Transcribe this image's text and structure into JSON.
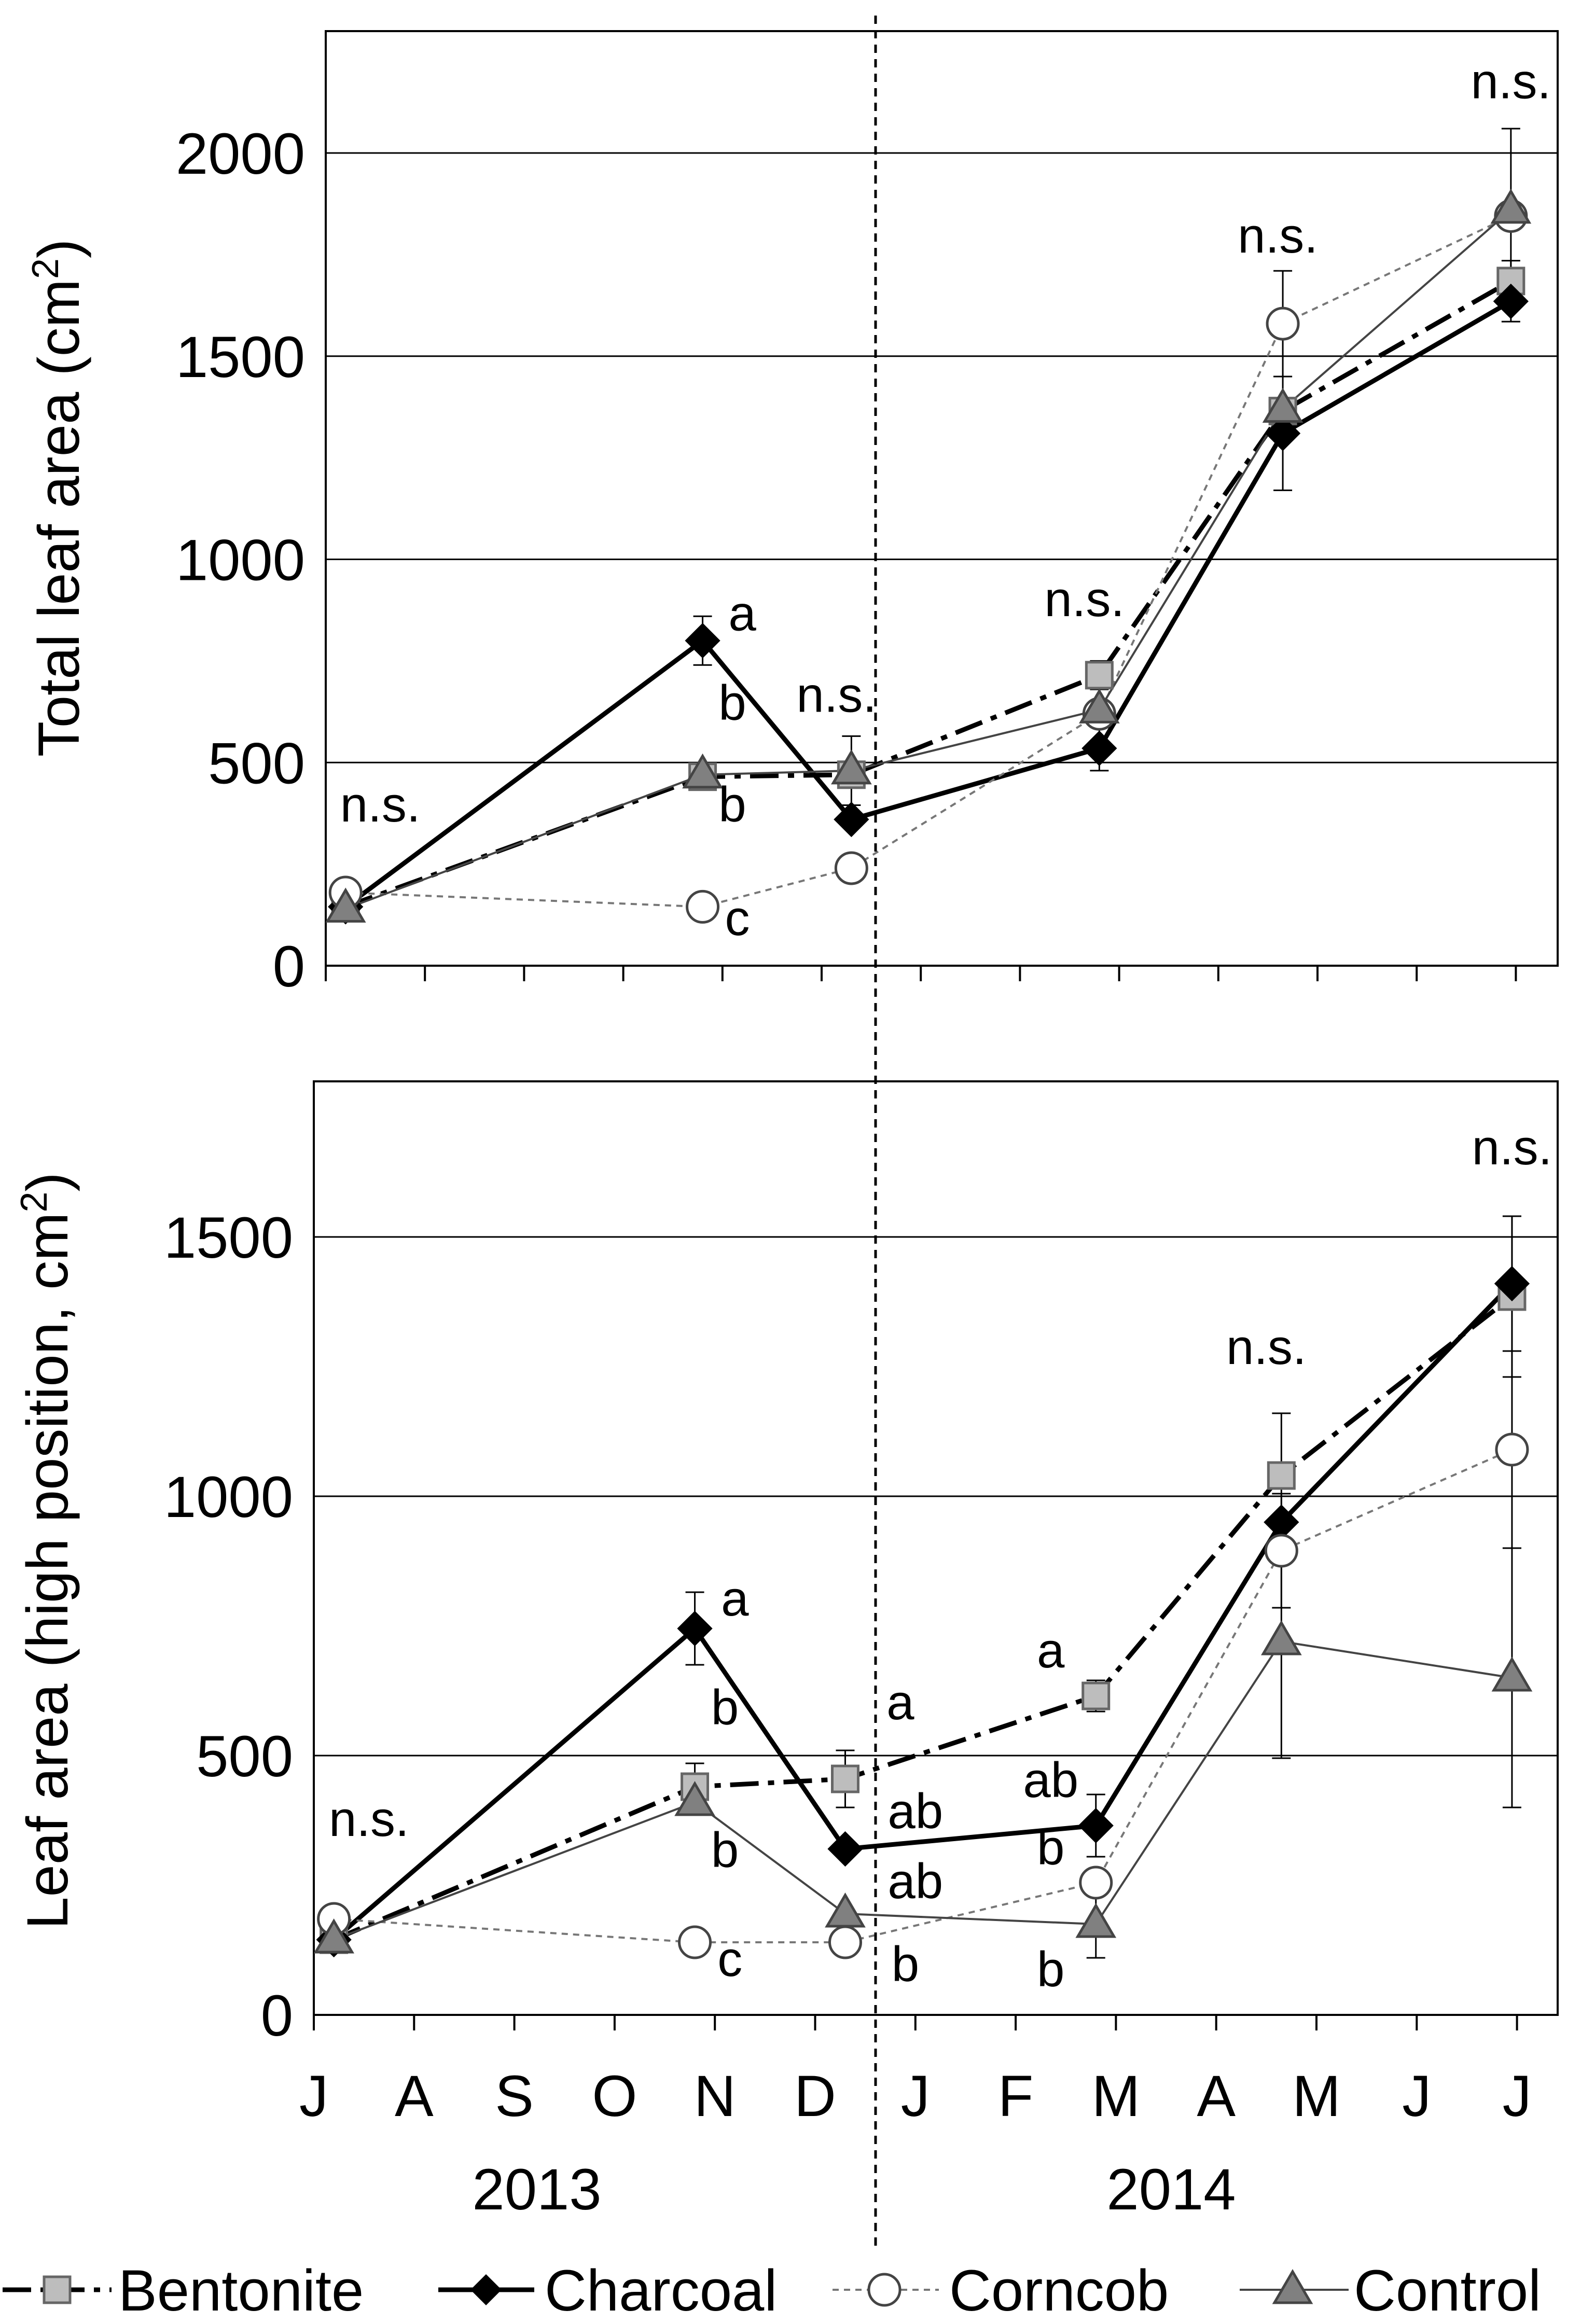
{
  "chart_data": [
    {
      "type": "line",
      "panel": "top",
      "ylabel": "Total leaf area (cm",
      "ylabel_sup": "2",
      "ylabel_end": ")",
      "ylim": [
        0,
        2300
      ],
      "yticks": [
        0,
        500,
        1000,
        1500,
        2000
      ],
      "ytick_labels": [
        "0",
        "500",
        "1000",
        "1500",
        "2000"
      ],
      "grid": true,
      "series": [
        {
          "name": "Bentonite",
          "x": [
            0.2,
            3.8,
            5.3,
            7.8,
            9.65,
            11.95
          ],
          "values": [
            145,
            465,
            470,
            715,
            1365,
            1685
          ],
          "errors": [
            0,
            0,
            0,
            35,
            0,
            50
          ]
        },
        {
          "name": "Charcoal",
          "x": [
            0.2,
            3.8,
            5.3,
            7.8,
            9.65,
            11.95
          ],
          "values": [
            145,
            800,
            360,
            535,
            1310,
            1635
          ],
          "errors": [
            0,
            60,
            0,
            55,
            140,
            50
          ]
        },
        {
          "name": "Corncob",
          "x": [
            0.2,
            3.8,
            5.3,
            7.8,
            9.65,
            11.95
          ],
          "values": [
            180,
            145,
            240,
            620,
            1580,
            1845
          ],
          "errors": [
            0,
            0,
            0,
            0,
            130,
            0
          ]
        },
        {
          "name": "Control",
          "x": [
            0.2,
            3.8,
            5.3,
            7.8,
            9.65,
            11.95
          ],
          "values": [
            140,
            470,
            480,
            630,
            1370,
            1860
          ],
          "errors": [
            0,
            0,
            85,
            0,
            0,
            200
          ]
        }
      ],
      "annotations": [
        {
          "text": "n.s.",
          "x": 0.55,
          "y": 355
        },
        {
          "text": "a",
          "x": 4.2,
          "y": 825
        },
        {
          "text": "b",
          "x": 4.1,
          "y": 605
        },
        {
          "text": "b",
          "x": 4.1,
          "y": 355
        },
        {
          "text": "c",
          "x": 4.15,
          "y": 75
        },
        {
          "text": "n.s.",
          "x": 5.15,
          "y": 625
        },
        {
          "text": "n.s.",
          "x": 7.65,
          "y": 860
        },
        {
          "text": "n.s.",
          "x": 9.6,
          "y": 1755
        },
        {
          "text": "n.s.",
          "x": 11.95,
          "y": 2135
        }
      ]
    },
    {
      "type": "line",
      "panel": "bottom",
      "ylabel": "Leaf area (high position, cm",
      "ylabel_sup": "2",
      "ylabel_end": ")",
      "ylim": [
        0,
        1800
      ],
      "yticks": [
        0,
        500,
        1000,
        1500
      ],
      "ytick_labels": [
        "0",
        "500",
        "1000",
        "1500"
      ],
      "xticks": [
        "J",
        "A",
        "S",
        "O",
        "N",
        "D",
        "J",
        "F",
        "M",
        "A",
        "M",
        "J",
        "J"
      ],
      "year_labels": [
        "2013",
        "2014"
      ],
      "grid": true,
      "series": [
        {
          "name": "Bentonite",
          "x": [
            0.2,
            3.8,
            5.3,
            7.8,
            9.65,
            11.95
          ],
          "values": [
            145,
            440,
            455,
            615,
            1040,
            1385
          ],
          "errors": [
            0,
            45,
            55,
            30,
            120,
            155
          ]
        },
        {
          "name": "Charcoal",
          "x": [
            0.2,
            3.8,
            5.3,
            7.8,
            9.65,
            11.95
          ],
          "values": [
            145,
            745,
            320,
            365,
            950,
            1410
          ],
          "errors": [
            0,
            70,
            0,
            60,
            0,
            130
          ]
        },
        {
          "name": "Corncob",
          "x": [
            0.2,
            3.8,
            5.3,
            7.8,
            9.65,
            11.95
          ],
          "values": [
            185,
            140,
            140,
            255,
            895,
            1090
          ],
          "errors": [
            0,
            0,
            0,
            0,
            110,
            190
          ]
        },
        {
          "name": "Control",
          "x": [
            0.2,
            3.8,
            5.3,
            7.8,
            9.65,
            11.95
          ],
          "values": [
            145,
            410,
            195,
            175,
            720,
            650
          ],
          "errors": [
            0,
            0,
            0,
            65,
            225,
            250
          ]
        }
      ],
      "annotations": [
        {
          "text": "n.s.",
          "x": 0.55,
          "y": 345
        },
        {
          "text": "a",
          "x": 4.2,
          "y": 770
        },
        {
          "text": "b",
          "x": 4.1,
          "y": 560
        },
        {
          "text": "b",
          "x": 4.1,
          "y": 285
        },
        {
          "text": "c",
          "x": 4.15,
          "y": 75
        },
        {
          "text": "a",
          "x": 5.85,
          "y": 570
        },
        {
          "text": "ab",
          "x": 6.0,
          "y": 360
        },
        {
          "text": "ab",
          "x": 6.0,
          "y": 225
        },
        {
          "text": "b",
          "x": 5.9,
          "y": 65
        },
        {
          "text": "a",
          "x": 7.35,
          "y": 670
        },
        {
          "text": "ab",
          "x": 7.35,
          "y": 420
        },
        {
          "text": "b",
          "x": 7.35,
          "y": 290
        },
        {
          "text": "b",
          "x": 7.35,
          "y": 55
        },
        {
          "text": "n.s.",
          "x": 9.5,
          "y": 1255
        },
        {
          "text": "n.s.",
          "x": 11.95,
          "y": 1640
        }
      ]
    }
  ],
  "legend": {
    "position": "bottom",
    "items": [
      "Bentonite",
      "Charcoal",
      "Corncob",
      "Control"
    ]
  }
}
